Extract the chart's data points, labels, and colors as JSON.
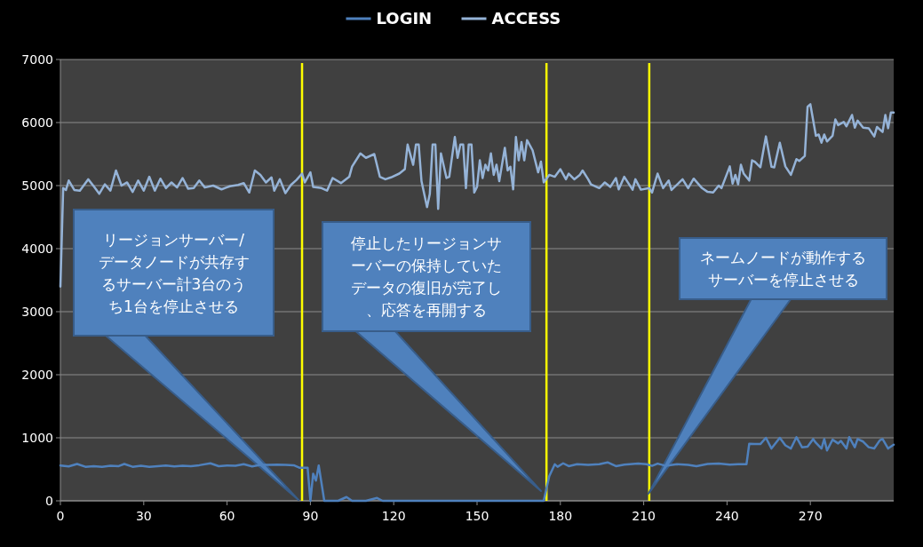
{
  "chart_data": {
    "type": "line",
    "legend": "top",
    "grid": "y",
    "marker": "none",
    "line_style": "solid",
    "xlim": [
      0,
      300
    ],
    "xticks": [
      0,
      30,
      60,
      90,
      120,
      150,
      180,
      210,
      240,
      270
    ],
    "ylim": [
      0,
      7000
    ],
    "yticks": [
      0,
      1000,
      2000,
      3000,
      4000,
      5000,
      6000,
      7000
    ],
    "series": [
      {
        "name": "LOGIN",
        "color": "#4f81bd",
        "x": [
          0,
          3,
          6,
          9,
          12,
          15,
          18,
          21,
          23,
          26,
          29,
          32,
          35,
          38,
          41,
          44,
          47,
          50,
          54,
          57,
          60,
          63,
          66,
          69,
          72,
          75,
          78,
          81,
          84,
          86,
          89,
          90,
          91,
          92,
          93,
          95,
          100,
          103,
          105,
          110,
          114,
          116,
          120,
          130,
          140,
          150,
          160,
          170,
          174,
          176,
          178,
          179,
          181,
          183,
          186,
          190,
          194,
          197,
          200,
          203,
          208,
          211,
          213,
          215,
          218,
          222,
          226,
          229,
          233,
          237,
          241,
          244,
          247,
          248,
          250,
          252,
          254,
          256,
          259,
          261,
          263,
          265,
          267,
          269,
          271,
          272,
          274,
          275,
          276,
          278,
          280,
          281,
          283,
          284,
          286,
          287,
          289,
          291,
          293,
          295,
          296,
          298,
          300
        ],
        "values": [
          560,
          545,
          585,
          540,
          550,
          540,
          555,
          550,
          585,
          540,
          555,
          540,
          550,
          560,
          545,
          555,
          550,
          565,
          595,
          550,
          560,
          555,
          580,
          545,
          570,
          570,
          575,
          570,
          565,
          525,
          525,
          0,
          430,
          320,
          560,
          0,
          0,
          60,
          0,
          0,
          45,
          0,
          0,
          0,
          0,
          0,
          0,
          0,
          0,
          390,
          580,
          540,
          595,
          550,
          580,
          570,
          580,
          610,
          550,
          575,
          590,
          580,
          555,
          590,
          555,
          580,
          570,
          550,
          585,
          590,
          575,
          580,
          580,
          905,
          900,
          900,
          1000,
          830,
          1000,
          880,
          830,
          1010,
          850,
          860,
          980,
          920,
          830,
          980,
          800,
          970,
          910,
          950,
          830,
          1010,
          850,
          980,
          940,
          850,
          830,
          960,
          980,
          830,
          890
        ]
      },
      {
        "name": "ACCESS",
        "color": "#95b3d7",
        "x": [
          0,
          1,
          2,
          3,
          5,
          7,
          10,
          12,
          14,
          16,
          18,
          20,
          22,
          24,
          26,
          28,
          30,
          32,
          34,
          36,
          38,
          40,
          42,
          44,
          46,
          48,
          50,
          52,
          55,
          58,
          61,
          64,
          66,
          68,
          70,
          72,
          74,
          76,
          77,
          79,
          81,
          83,
          85,
          87,
          88,
          90,
          91,
          94,
          96,
          98,
          101,
          104,
          105,
          108,
          110,
          113,
          115,
          117,
          119,
          122,
          124,
          125,
          127,
          128,
          129,
          130,
          132,
          133,
          134,
          135,
          136,
          137,
          139,
          140,
          142,
          143,
          144,
          145,
          146,
          147,
          148,
          149,
          150,
          151,
          152,
          153,
          154,
          155,
          156,
          157,
          158,
          160,
          161,
          162,
          163,
          164,
          165,
          166,
          167,
          168,
          170,
          172,
          173,
          174,
          176,
          178,
          180,
          182,
          183,
          185,
          187,
          188,
          190,
          191,
          194,
          196,
          198,
          200,
          201,
          203,
          206,
          207,
          209,
          212,
          213,
          215,
          217,
          219,
          220,
          224,
          226,
          228,
          231,
          233,
          235,
          237,
          238,
          241,
          242,
          243,
          244,
          245,
          246,
          248,
          249,
          250,
          252,
          254,
          256,
          257,
          259,
          261,
          263,
          265,
          266,
          268,
          269,
          270,
          272,
          273,
          274,
          275,
          276,
          278,
          279,
          280,
          282,
          283,
          285,
          286,
          287,
          289,
          291,
          293,
          294,
          296,
          297,
          298,
          299,
          300
        ],
        "values": [
          3400,
          4960,
          4930,
          5080,
          4930,
          4920,
          5100,
          4990,
          4870,
          5020,
          4920,
          5240,
          5000,
          5050,
          4900,
          5080,
          4920,
          5140,
          4920,
          5110,
          4960,
          5050,
          4970,
          5120,
          4950,
          4960,
          5080,
          4970,
          5000,
          4940,
          4990,
          5010,
          5040,
          4890,
          5240,
          5170,
          5050,
          5130,
          4920,
          5100,
          4880,
          5010,
          5090,
          5190,
          5050,
          5210,
          4980,
          4960,
          4920,
          5120,
          5040,
          5140,
          5300,
          5510,
          5440,
          5500,
          5140,
          5100,
          5130,
          5190,
          5260,
          5650,
          5330,
          5650,
          5650,
          5070,
          4660,
          4870,
          5650,
          5650,
          4630,
          5510,
          5120,
          5140,
          5770,
          5440,
          5650,
          5650,
          4960,
          5650,
          5650,
          4890,
          4980,
          5400,
          5120,
          5330,
          5240,
          5510,
          5170,
          5330,
          5070,
          5600,
          5240,
          5300,
          4940,
          5770,
          5400,
          5690,
          5400,
          5720,
          5560,
          5210,
          5380,
          5050,
          5170,
          5140,
          5260,
          5100,
          5190,
          5100,
          5170,
          5240,
          5100,
          5020,
          4960,
          5050,
          4980,
          5120,
          4940,
          5140,
          4935,
          5100,
          4935,
          4960,
          4890,
          5190,
          4960,
          5080,
          4930,
          5100,
          4960,
          5110,
          4960,
          4900,
          4890,
          5000,
          4960,
          5305,
          5030,
          5170,
          5020,
          5330,
          5190,
          5080,
          5400,
          5380,
          5290,
          5780,
          5300,
          5290,
          5680,
          5305,
          5170,
          5420,
          5390,
          5470,
          6250,
          6290,
          5790,
          5810,
          5680,
          5810,
          5700,
          5790,
          6050,
          5960,
          6010,
          5940,
          6120,
          5920,
          6030,
          5920,
          5910,
          5780,
          5930,
          5850,
          6120,
          5910,
          6160,
          6160
        ]
      }
    ],
    "ref_lines": [
      {
        "axis": "x",
        "value": 87,
        "color": "#ffff00"
      },
      {
        "axis": "x",
        "value": 175,
        "color": "#ffff00"
      },
      {
        "axis": "x",
        "value": 212,
        "color": "#ffff00"
      }
    ],
    "annotations": [
      "リージョンサーバー/データノードが共存するサーバー計3台のうち1台を停止させる",
      "停止したリージョンサーバーの保持していたデータの復旧が完了し、応答を再開する",
      "ネームノードが動作するサーバーを停止させる"
    ]
  }
}
